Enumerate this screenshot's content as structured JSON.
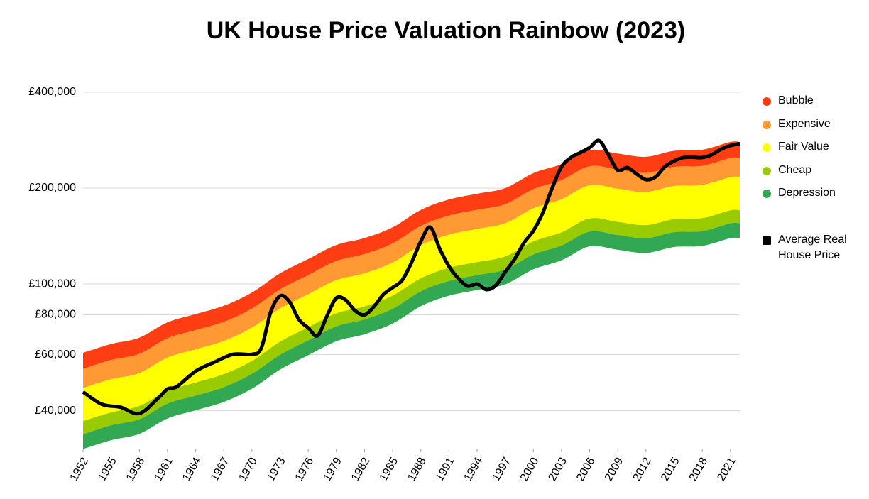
{
  "chart_data": {
    "type": "rainbow",
    "title": "UK House Price Valuation Rainbow (2023)",
    "log_y": true,
    "grid": true,
    "legend_position": "right",
    "ylim": [
      30400,
      400000
    ],
    "yticks": [
      {
        "value": 40000,
        "label": "£40,000"
      },
      {
        "value": 60000,
        "label": "£60,000"
      },
      {
        "value": 80000,
        "label": "£80,000"
      },
      {
        "value": 100000,
        "label": "£100,000"
      },
      {
        "value": 200000,
        "label": "£200,000"
      },
      {
        "value": 400000,
        "label": "£400,000"
      }
    ],
    "xlim": [
      1952,
      2022
    ],
    "xticks": [
      1952,
      1955,
      1958,
      1961,
      1964,
      1967,
      1970,
      1973,
      1976,
      1979,
      1982,
      1985,
      1988,
      1991,
      1994,
      1997,
      2000,
      2003,
      2006,
      2009,
      2012,
      2015,
      2018,
      2021
    ],
    "band_x": [
      1952,
      1955,
      1958,
      1961,
      1964,
      1967,
      1970,
      1973,
      1976,
      1979,
      1982,
      1985,
      1988,
      1991,
      1994,
      1997,
      2000,
      2003,
      2006,
      2009,
      2012,
      2015,
      2018,
      2021,
      2022
    ],
    "bands": [
      {
        "name": "Bubble",
        "color": "#ff3d12",
        "values": [
          60800,
          64800,
          67800,
          75800,
          80400,
          85400,
          94000,
          108000,
          119800,
          132600,
          139400,
          150600,
          170800,
          184200,
          192000,
          200000,
          223000,
          238000,
          263200,
          256800,
          250800,
          262000,
          264000,
          279200,
          279200
        ]
      },
      {
        "name": "Expensive",
        "color": "#ff9933",
        "values": [
          54100,
          57700,
          60300,
          67500,
          71600,
          76000,
          83700,
          96100,
          106600,
          118000,
          124100,
          134000,
          152000,
          163900,
          170900,
          178000,
          198500,
          211800,
          234200,
          228600,
          223200,
          233200,
          235000,
          248500,
          248500
        ]
      },
      {
        "name": "Fair Value",
        "color": "#ffff00",
        "values": [
          47100,
          50200,
          52500,
          58700,
          62300,
          66200,
          72900,
          83700,
          92800,
          102800,
          108000,
          116700,
          132400,
          142800,
          148800,
          155000,
          172800,
          184500,
          204000,
          199000,
          194400,
          203100,
          204600,
          216400,
          216400
        ]
      },
      {
        "name": "Cheap",
        "color": "#99cc00",
        "values": [
          37100,
          39500,
          41400,
          46200,
          49000,
          52100,
          57300,
          65900,
          73100,
          80900,
          85000,
          91900,
          104200,
          112400,
          117100,
          122000,
          136000,
          145200,
          160600,
          156600,
          153000,
          159800,
          161000,
          170300,
          170300
        ]
      },
      {
        "name": "Depression",
        "color": "#33a852",
        "values": [
          33700,
          36000,
          37600,
          42100,
          44600,
          47400,
          52200,
          59900,
          66500,
          73600,
          77400,
          83600,
          94800,
          102200,
          106600,
          111000,
          123800,
          132100,
          146100,
          142500,
          139200,
          145400,
          146500,
          155000,
          155000
        ],
        "lower": [
          30400,
          32400,
          33900,
          37900,
          40200,
          42700,
          47000,
          54000,
          59900,
          66300,
          69700,
          75300,
          85400,
          92100,
          96000,
          100000,
          111500,
          119000,
          131600,
          128400,
          125400,
          131000,
          132000,
          139600,
          139600
        ]
      }
    ],
    "series": [
      {
        "name": "Average Real House Price",
        "color": "#000000",
        "x": [
          1952,
          1954,
          1956,
          1958,
          1960,
          1961,
          1962,
          1964,
          1966,
          1968,
          1970,
          1971,
          1972,
          1973,
          1974,
          1975,
          1976,
          1977,
          1978,
          1979,
          1980,
          1981,
          1982,
          1983,
          1984,
          1985,
          1986,
          1987,
          1988,
          1989,
          1990,
          1991,
          1992,
          1993,
          1994,
          1995,
          1996,
          1997,
          1998,
          1999,
          2000,
          2001,
          2002,
          2003,
          2004,
          2005,
          2006,
          2007,
          2008,
          2009,
          2010,
          2011,
          2012,
          2013,
          2014,
          2015,
          2016,
          2017,
          2018,
          2019,
          2020,
          2021,
          2022
        ],
        "values": [
          45800,
          41900,
          41000,
          39200,
          43800,
          46800,
          47600,
          53200,
          56800,
          60100,
          60100,
          62900,
          81600,
          91700,
          88000,
          77400,
          72800,
          68800,
          79400,
          90400,
          89000,
          82400,
          80000,
          84900,
          92600,
          97400,
          102600,
          116600,
          136000,
          150800,
          129300,
          113700,
          104100,
          98500,
          100000,
          96000,
          99000,
          109100,
          119700,
          134700,
          146900,
          167200,
          200000,
          233300,
          249500,
          258500,
          268000,
          282000,
          254600,
          227600,
          232000,
          221700,
          212700,
          216600,
          233300,
          243300,
          249500,
          250000,
          249500,
          254600,
          265000,
          272000,
          276000
        ]
      }
    ]
  }
}
